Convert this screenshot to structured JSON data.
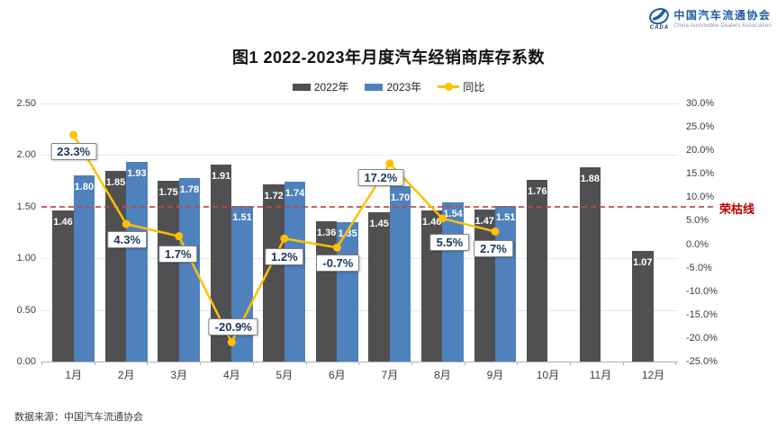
{
  "header": {
    "logo": {
      "org_name": "中国汽车流通协会",
      "org_name_en": "China Automobile Dealers Association",
      "abbr": "CADA"
    },
    "title": "图1  2022-2023年月度汽车经销商库存系数"
  },
  "legend": [
    {
      "label": "2022年",
      "type": "swatch",
      "color": "#505052"
    },
    {
      "label": "2023年",
      "type": "swatch",
      "color": "#4f81bd"
    },
    {
      "label": "同比",
      "type": "line",
      "color": "#ffc000"
    }
  ],
  "chart_data": {
    "type": "bar",
    "subtype": "grouped bars with line on secondary axis",
    "title": "图1  2022-2023年月度汽车经销商库存系数",
    "categories": [
      "1月",
      "2月",
      "3月",
      "4月",
      "5月",
      "6月",
      "7月",
      "8月",
      "9月",
      "10月",
      "11月",
      "12月"
    ],
    "series": [
      {
        "name": "2022年",
        "type": "bar",
        "axis": "left",
        "color": "#505052",
        "values": [
          1.46,
          1.85,
          1.75,
          1.91,
          1.72,
          1.36,
          1.45,
          1.46,
          1.47,
          1.76,
          1.88,
          1.07
        ]
      },
      {
        "name": "2023年",
        "type": "bar",
        "axis": "left",
        "color": "#4f81bd",
        "values": [
          1.8,
          1.93,
          1.78,
          1.51,
          1.74,
          1.35,
          1.7,
          1.54,
          1.51,
          null,
          null,
          null
        ]
      },
      {
        "name": "同比",
        "type": "line",
        "axis": "right",
        "color": "#ffc000",
        "values": [
          23.3,
          4.3,
          1.7,
          -20.9,
          1.2,
          -0.7,
          17.2,
          5.5,
          2.7,
          null,
          null,
          null
        ],
        "labels": [
          "23.3%",
          "4.3%",
          "1.7%",
          "-20.9%",
          "1.2%",
          "-0.7%",
          "17.2%",
          "5.5%",
          "2.7%"
        ]
      }
    ],
    "left_axis": {
      "min": 0,
      "max": 2.5,
      "step": 0.5,
      "tick_labels": [
        "2.50",
        "2.00",
        "1.50",
        "1.00",
        "0.50",
        "0.00"
      ]
    },
    "right_axis": {
      "min": -25,
      "max": 30,
      "step": 5,
      "tick_labels": [
        "30.0%",
        "25.0%",
        "20.0%",
        "15.0%",
        "10.0%",
        "5.0%",
        "0.0%",
        "-5.0%",
        "-10.0%",
        "-15.0%",
        "-20.0%",
        "-25.0%"
      ]
    },
    "reference_line": {
      "value": 1.5,
      "label": "荣枯线",
      "color": "#c00000"
    },
    "grid": "horizontal",
    "legend_position": "top"
  },
  "footer": {
    "source": "数据来源：中国汽车流通协会"
  }
}
